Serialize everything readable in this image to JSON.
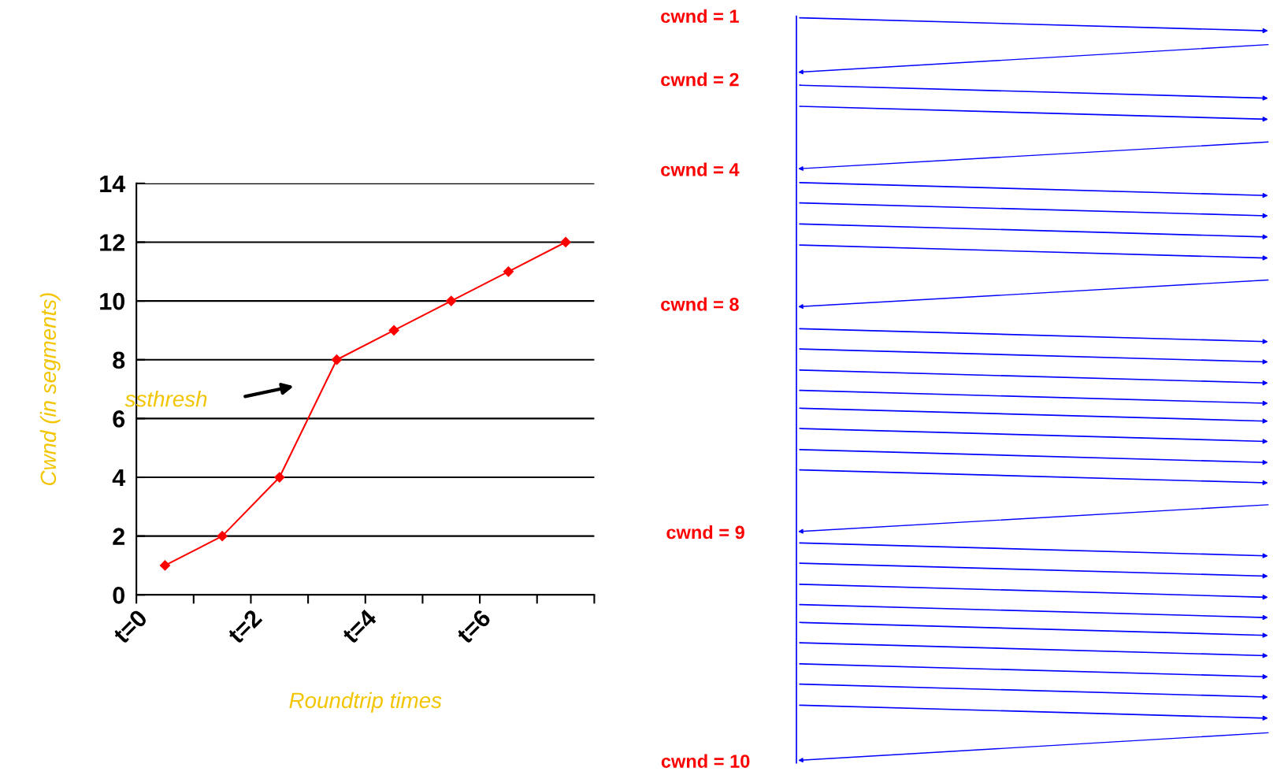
{
  "chart_data": [
    {
      "type": "line",
      "xlabel": "Roundtrip times",
      "ylabel": "Cwnd (in segments)",
      "x": [
        0.5,
        1.5,
        2.5,
        3.5,
        4.5,
        5.5,
        6.5,
        7.5
      ],
      "series": [
        {
          "color": "#ff0000",
          "values": [
            1,
            2,
            4,
            8,
            9,
            10,
            11,
            12
          ]
        }
      ],
      "xlim": [
        0,
        8
      ],
      "xticks": [
        {
          "value": 0,
          "label": "t=0"
        },
        {
          "value": 1,
          "label": null
        },
        {
          "value": 2,
          "label": "t=2"
        },
        {
          "value": 3,
          "label": null
        },
        {
          "value": 4,
          "label": "t=4"
        },
        {
          "value": 5,
          "label": null
        },
        {
          "value": 6,
          "label": "t=6"
        },
        {
          "value": 7,
          "label": null
        },
        {
          "value": 8,
          "label": null
        }
      ],
      "ylim": [
        0,
        14
      ],
      "yticks": [
        0,
        2,
        4,
        6,
        8,
        10,
        12,
        14
      ],
      "grid": "y",
      "marker": "diamond",
      "line_style": "solid",
      "annotations": [
        "ssthresh"
      ]
    },
    {
      "type": "other",
      "annotations": [
        "cwnd = 1",
        "cwnd = 2",
        "cwnd = 4",
        "cwnd = 8",
        "cwnd = 9",
        "cwnd = 10"
      ]
    }
  ]
}
